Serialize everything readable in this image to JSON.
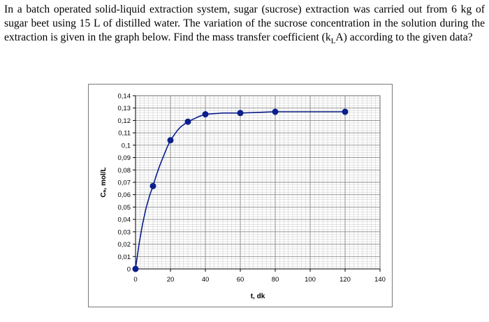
{
  "question": {
    "text_before": "In a batch operated solid-liquid extraction system, sugar (sucrose) extraction was carried out from 6 kg of sugar beet using 15 L of distilled water. The variation of the sucrose concentration in the solution during the extraction is given in the graph below. Find the mass transfer coefficient (k",
    "subscript": "L",
    "text_after": "A) according to the given data?"
  },
  "chart_data": {
    "type": "line",
    "title": "",
    "xlabel": "t, dk",
    "ylabel": "Cₐ, mol/L",
    "xlim": [
      0,
      140
    ],
    "ylim": [
      0,
      0.14
    ],
    "x_ticks": [
      0,
      20,
      40,
      60,
      80,
      100,
      120,
      140
    ],
    "x_tick_labels": [
      "0",
      "20",
      "40",
      "60",
      "80",
      "100",
      "120",
      "140"
    ],
    "y_ticks": [
      0,
      0.01,
      0.02,
      0.03,
      0.04,
      0.05,
      0.06,
      0.07,
      0.08,
      0.09,
      0.1,
      0.11,
      0.12,
      0.13,
      0.14
    ],
    "y_tick_labels": [
      "0",
      "0,01",
      "0,02",
      "0,03",
      "0,04",
      "0,05",
      "0,06",
      "0,07",
      "0,08",
      "0,09",
      "0,1",
      "0,11",
      "0,12",
      "0,13",
      "0,14"
    ],
    "grid": true,
    "minor_grid": true,
    "legend": "none",
    "series": [
      {
        "x": [
          0,
          10,
          20,
          30,
          40,
          60,
          80,
          120
        ],
        "y": [
          0,
          0.067,
          0.104,
          0.119,
          0.125,
          0.126,
          0.127,
          0.127
        ],
        "color": "#0a1e8c",
        "marker": "circle"
      }
    ],
    "fitted_curve": {
      "x": [
        0,
        2,
        4,
        6,
        8,
        10,
        12,
        14,
        16,
        18,
        20,
        22,
        24,
        26,
        28,
        30,
        33,
        36,
        40,
        45,
        50,
        55,
        60,
        70,
        80,
        100,
        120
      ],
      "y": [
        0,
        0.02,
        0.036,
        0.049,
        0.059,
        0.067,
        0.076,
        0.084,
        0.091,
        0.098,
        0.104,
        0.108,
        0.112,
        0.115,
        0.117,
        0.119,
        0.121,
        0.123,
        0.125,
        0.1255,
        0.126,
        0.126,
        0.126,
        0.1265,
        0.127,
        0.127,
        0.127
      ],
      "color": "#0a1e8c"
    }
  }
}
